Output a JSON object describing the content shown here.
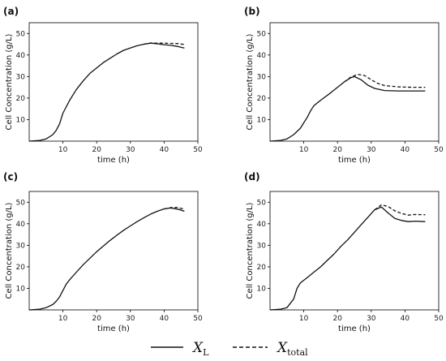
{
  "chart_data": [
    {
      "panel": "(a)",
      "type": "line",
      "xlabel": "time (h)",
      "ylabel": "Cell Concentration (g/L)",
      "xlim": [
        0,
        50
      ],
      "ylim": [
        0,
        55
      ],
      "xticks": [
        10,
        20,
        30,
        40,
        50
      ],
      "yticks": [
        10,
        20,
        30,
        40,
        50
      ],
      "series": [
        {
          "key": "XL",
          "style": "solid",
          "x": [
            0,
            3,
            5,
            7,
            8,
            9,
            10,
            12,
            14,
            16,
            18,
            20,
            22,
            24,
            26,
            28,
            30,
            32,
            34,
            36,
            38,
            40,
            42,
            44,
            46
          ],
          "y": [
            0,
            0.3,
            1,
            3,
            5,
            8,
            13,
            19,
            24,
            28,
            31.5,
            34,
            36.5,
            38.5,
            40.5,
            42.2,
            43.3,
            44.3,
            45,
            45.5,
            45.2,
            44.8,
            44.5,
            44,
            43.2
          ]
        },
        {
          "key": "Xtotal",
          "style": "dashed",
          "x": [
            34,
            36,
            38,
            40,
            42,
            44,
            46
          ],
          "y": [
            45,
            45.6,
            45.5,
            45.5,
            45.4,
            45.3,
            44.9
          ]
        }
      ]
    },
    {
      "panel": "(b)",
      "type": "line",
      "xlabel": "time (h)",
      "ylabel": "Cell Concentration (g/L)",
      "xlim": [
        0,
        50
      ],
      "ylim": [
        0,
        55
      ],
      "xticks": [
        10,
        20,
        30,
        40,
        50
      ],
      "yticks": [
        10,
        20,
        30,
        40,
        50
      ],
      "series": [
        {
          "key": "XL",
          "style": "solid",
          "x": [
            0,
            3,
            5,
            7,
            9,
            10,
            11,
            12,
            13,
            15,
            18,
            20,
            22,
            24,
            25,
            27,
            29,
            31,
            34,
            38,
            42,
            46
          ],
          "y": [
            0,
            0.3,
            1,
            3,
            6,
            8.5,
            11,
            14,
            16.5,
            19,
            22.5,
            25,
            27.5,
            29.5,
            30,
            28.5,
            26,
            24.5,
            23.5,
            23.3,
            23.3,
            23.3
          ]
        },
        {
          "key": "Xtotal",
          "style": "dashed",
          "x": [
            22,
            24,
            26,
            28,
            30,
            32,
            34,
            38,
            42,
            46
          ],
          "y": [
            27.5,
            29.8,
            31,
            30.5,
            28.5,
            26.8,
            25.8,
            25.2,
            25,
            25
          ]
        }
      ]
    },
    {
      "panel": "(c)",
      "type": "line",
      "xlabel": "time (h)",
      "ylabel": "Cell Concentration (g/L)",
      "xlim": [
        0,
        50
      ],
      "ylim": [
        0,
        55
      ],
      "xticks": [
        10,
        20,
        30,
        40,
        50
      ],
      "yticks": [
        10,
        20,
        30,
        40,
        50
      ],
      "series": [
        {
          "key": "XL",
          "style": "solid",
          "x": [
            0,
            3,
            5,
            7,
            8,
            9,
            10,
            11,
            12,
            14,
            16,
            18,
            20,
            22,
            24,
            26,
            28,
            30,
            32,
            34,
            36,
            38,
            40,
            42,
            44,
            46
          ],
          "y": [
            0,
            0.3,
            1,
            2.5,
            4,
            6,
            9,
            12,
            14,
            17.5,
            21,
            24,
            27,
            29.7,
            32.3,
            34.7,
            37,
            39,
            41,
            42.8,
            44.5,
            45.8,
            46.9,
            47.3,
            46.8,
            45.8
          ]
        },
        {
          "key": "Xtotal",
          "style": "dashed",
          "x": [
            40,
            42,
            44,
            46
          ],
          "y": [
            46.9,
            47.5,
            47.6,
            46.7
          ]
        }
      ]
    },
    {
      "panel": "(d)",
      "type": "line",
      "xlabel": "time (h)",
      "ylabel": "Cell Concentration (g/L)",
      "xlim": [
        0,
        50
      ],
      "ylim": [
        0,
        55
      ],
      "xticks": [
        10,
        20,
        30,
        40,
        50
      ],
      "yticks": [
        10,
        20,
        30,
        40,
        50
      ],
      "series": [
        {
          "key": "XL",
          "style": "solid",
          "x": [
            0,
            3,
            5,
            7,
            8,
            9,
            11,
            13,
            15,
            17,
            19,
            21,
            23,
            25,
            27,
            29,
            31,
            33,
            35,
            37,
            39,
            41,
            43,
            46
          ],
          "y": [
            0,
            0.3,
            1,
            5,
            10,
            12.5,
            15,
            17.5,
            20,
            23,
            26,
            29.5,
            32.5,
            36,
            39.5,
            43,
            46.5,
            47.8,
            45,
            42.5,
            41.5,
            41,
            41.2,
            41
          ]
        },
        {
          "key": "Xtotal",
          "style": "dashed",
          "x": [
            31,
            33,
            35,
            37,
            39,
            41,
            43,
            46
          ],
          "y": [
            46.5,
            48.8,
            48,
            46,
            44.8,
            44,
            44.3,
            44.2
          ]
        }
      ]
    }
  ],
  "legend": {
    "entries": [
      {
        "key": "XL",
        "style": "solid",
        "symbol": "X",
        "sub": "L"
      },
      {
        "key": "Xtotal",
        "style": "dashed",
        "symbol": "X",
        "sub": "total"
      }
    ],
    "placement": "bottom-center"
  }
}
